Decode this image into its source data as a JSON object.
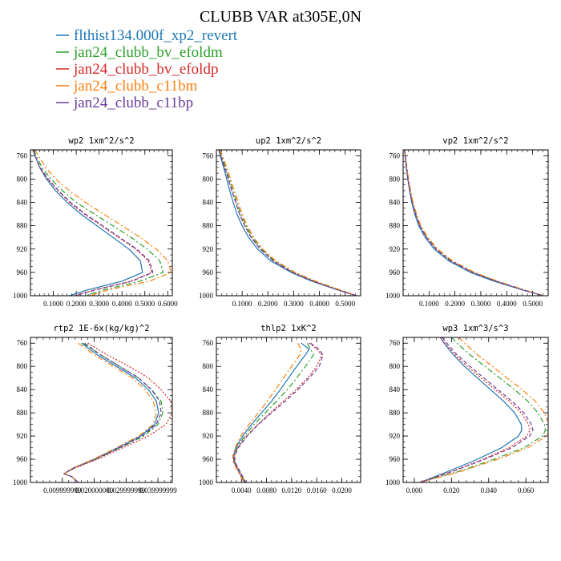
{
  "figure": {
    "title": "CLUBB VAR at305E,0N"
  },
  "legend": [
    {
      "label": "flthist134.000f_xp2_revert",
      "color": "#1f77b4",
      "dash": "solid"
    },
    {
      "label": "jan24_clubb_bv_efoldm",
      "color": "#2ca02c",
      "dash": "dashdot"
    },
    {
      "label": "jan24_clubb_bv_efoldp",
      "color": "#d62728",
      "dash": "dotted"
    },
    {
      "label": "jan24_clubb_c11bm",
      "color": "#ff7f0e",
      "dash": "dashdot"
    },
    {
      "label": "jan24_clubb_c11bp",
      "color": "#6a3d9a",
      "dash": "dashed"
    }
  ],
  "chart_data": [
    {
      "type": "line",
      "title": "wp2   1xm^2/s^2",
      "xlim": [
        0.0,
        0.62
      ],
      "ylim": [
        1000,
        750
      ],
      "xticks": [
        0.1,
        0.2,
        0.3,
        0.4,
        0.5,
        0.6
      ],
      "xtick_labels": [
        "0.1000",
        "0.2000",
        "0.3000",
        "0.4000",
        "0.5000",
        "0.6000"
      ],
      "yticks": [
        760,
        800,
        840,
        880,
        920,
        960,
        1000
      ],
      "ytick_labels": [
        "760",
        "800",
        "840",
        "880",
        "920",
        "960",
        "1000"
      ],
      "y": [
        750,
        760,
        780,
        800,
        820,
        840,
        860,
        880,
        900,
        920,
        940,
        960,
        975,
        990,
        1000
      ],
      "series": [
        {
          "name": "flthist134.000f_xp2_revert",
          "values": [
            0.01,
            0.02,
            0.04,
            0.07,
            0.11,
            0.16,
            0.22,
            0.29,
            0.36,
            0.43,
            0.48,
            0.49,
            0.4,
            0.25,
            0.17
          ]
        },
        {
          "name": "jan24_clubb_bv_efoldm",
          "values": [
            0.015,
            0.025,
            0.05,
            0.09,
            0.14,
            0.2,
            0.28,
            0.36,
            0.44,
            0.51,
            0.565,
            0.58,
            0.48,
            0.32,
            0.24
          ]
        },
        {
          "name": "jan24_clubb_bv_efoldp",
          "values": [
            0.01,
            0.02,
            0.04,
            0.075,
            0.12,
            0.17,
            0.235,
            0.31,
            0.385,
            0.46,
            0.515,
            0.53,
            0.44,
            0.28,
            0.19
          ]
        },
        {
          "name": "jan24_clubb_c11bm",
          "values": [
            0.02,
            0.035,
            0.065,
            0.11,
            0.17,
            0.24,
            0.32,
            0.4,
            0.48,
            0.55,
            0.6,
            0.615,
            0.52,
            0.34,
            0.26
          ]
        },
        {
          "name": "jan24_clubb_c11bp",
          "values": [
            0.01,
            0.02,
            0.042,
            0.078,
            0.123,
            0.175,
            0.24,
            0.315,
            0.39,
            0.465,
            0.52,
            0.535,
            0.445,
            0.285,
            0.195
          ]
        }
      ]
    },
    {
      "type": "line",
      "title": "up2   1xm^2/s^2",
      "xlim": [
        0.0,
        0.56
      ],
      "ylim": [
        1000,
        750
      ],
      "xticks": [
        0.1,
        0.2,
        0.3,
        0.4,
        0.5
      ],
      "xtick_labels": [
        "0.1000",
        "0.2000",
        "0.3000",
        "0.4000",
        "0.5000"
      ],
      "yticks": [
        760,
        800,
        840,
        880,
        920,
        960,
        1000
      ],
      "ytick_labels": [
        "760",
        "800",
        "840",
        "880",
        "920",
        "960",
        "1000"
      ],
      "y": [
        750,
        760,
        780,
        800,
        820,
        840,
        860,
        880,
        900,
        920,
        940,
        960,
        975,
        990,
        1000
      ],
      "series": [
        {
          "name": "flthist134.000f_xp2_revert",
          "values": [
            0.01,
            0.015,
            0.028,
            0.04,
            0.052,
            0.065,
            0.08,
            0.1,
            0.125,
            0.16,
            0.21,
            0.29,
            0.37,
            0.47,
            0.545
          ]
        },
        {
          "name": "jan24_clubb_bv_efoldm",
          "values": [
            0.012,
            0.02,
            0.035,
            0.05,
            0.065,
            0.08,
            0.095,
            0.115,
            0.14,
            0.175,
            0.225,
            0.3,
            0.38,
            0.475,
            0.545
          ]
        },
        {
          "name": "jan24_clubb_bv_efoldp",
          "values": [
            0.01,
            0.017,
            0.032,
            0.046,
            0.06,
            0.075,
            0.09,
            0.11,
            0.135,
            0.17,
            0.22,
            0.295,
            0.375,
            0.47,
            0.545
          ]
        },
        {
          "name": "jan24_clubb_c11bm",
          "values": [
            0.015,
            0.023,
            0.04,
            0.055,
            0.07,
            0.085,
            0.1,
            0.12,
            0.145,
            0.18,
            0.23,
            0.305,
            0.385,
            0.48,
            0.545
          ]
        },
        {
          "name": "jan24_clubb_c11bp",
          "values": [
            0.01,
            0.017,
            0.032,
            0.046,
            0.06,
            0.075,
            0.09,
            0.11,
            0.135,
            0.17,
            0.22,
            0.295,
            0.375,
            0.47,
            0.545
          ]
        }
      ]
    },
    {
      "type": "line",
      "title": "vp2   1xm^2/s^2",
      "xlim": [
        0.0,
        0.56
      ],
      "ylim": [
        1000,
        750
      ],
      "xticks": [
        0.1,
        0.2,
        0.3,
        0.4,
        0.5
      ],
      "xtick_labels": [
        "0.1000",
        "0.2000",
        "0.3000",
        "0.4000",
        "0.5000"
      ],
      "yticks": [
        760,
        800,
        840,
        880,
        920,
        960,
        1000
      ],
      "ytick_labels": [
        "760",
        "800",
        "840",
        "880",
        "920",
        "960",
        "1000"
      ],
      "y": [
        750,
        760,
        780,
        800,
        820,
        840,
        860,
        880,
        900,
        920,
        940,
        960,
        975,
        990,
        1000
      ],
      "series": [
        {
          "name": "flthist134.000f_xp2_revert",
          "values": [
            0.005,
            0.008,
            0.012,
            0.018,
            0.025,
            0.033,
            0.045,
            0.06,
            0.085,
            0.12,
            0.175,
            0.26,
            0.35,
            0.46,
            0.54
          ]
        },
        {
          "name": "jan24_clubb_bv_efoldm",
          "values": [
            0.006,
            0.009,
            0.014,
            0.02,
            0.028,
            0.037,
            0.05,
            0.066,
            0.092,
            0.13,
            0.185,
            0.27,
            0.36,
            0.465,
            0.54
          ]
        },
        {
          "name": "jan24_clubb_bv_efoldp",
          "values": [
            0.005,
            0.008,
            0.013,
            0.019,
            0.026,
            0.035,
            0.048,
            0.064,
            0.09,
            0.127,
            0.182,
            0.268,
            0.358,
            0.463,
            0.54
          ]
        },
        {
          "name": "jan24_clubb_c11bm",
          "values": [
            0.006,
            0.009,
            0.015,
            0.021,
            0.029,
            0.038,
            0.052,
            0.068,
            0.095,
            0.133,
            0.19,
            0.275,
            0.365,
            0.468,
            0.54
          ]
        },
        {
          "name": "jan24_clubb_c11bp",
          "values": [
            0.005,
            0.008,
            0.013,
            0.019,
            0.026,
            0.035,
            0.048,
            0.064,
            0.09,
            0.127,
            0.182,
            0.268,
            0.358,
            0.463,
            0.54
          ]
        }
      ]
    },
    {
      "type": "line",
      "title": "rtp2   1E-6x(kg/kg)^2",
      "xlim": [
        0.0,
        0.0445
      ],
      "ylim": [
        1000,
        750
      ],
      "xticks": [
        0.01,
        0.02,
        0.03,
        0.04
      ],
      "xtick_labels": [
        "0.009999999",
        "0.020000000",
        "0.029999999",
        "0.039999999"
      ],
      "yticks": [
        760,
        800,
        840,
        880,
        920,
        960,
        1000
      ],
      "ytick_labels": [
        "760",
        "800",
        "840",
        "880",
        "920",
        "960",
        "1000"
      ],
      "y": [
        760,
        780,
        800,
        820,
        840,
        860,
        880,
        900,
        920,
        940,
        960,
        975,
        985,
        990,
        1000
      ],
      "series": [
        {
          "name": "flthist134.000f_xp2_revert",
          "values": [
            0.016,
            0.021,
            0.027,
            0.033,
            0.037,
            0.0395,
            0.0402,
            0.039,
            0.0345,
            0.0275,
            0.02,
            0.0135,
            0.0105,
            0.013,
            0.015
          ]
        },
        {
          "name": "jan24_clubb_bv_efoldm",
          "values": [
            0.0165,
            0.022,
            0.028,
            0.034,
            0.038,
            0.041,
            0.0415,
            0.04,
            0.0355,
            0.0282,
            0.0205,
            0.0138,
            0.0105,
            0.013,
            0.015
          ]
        },
        {
          "name": "jan24_clubb_bv_efoldp",
          "values": [
            0.018,
            0.024,
            0.031,
            0.037,
            0.041,
            0.044,
            0.0445,
            0.0425,
            0.037,
            0.029,
            0.021,
            0.014,
            0.0105,
            0.013,
            0.015
          ]
        },
        {
          "name": "jan24_clubb_c11bm",
          "values": [
            0.015,
            0.02,
            0.026,
            0.032,
            0.036,
            0.0385,
            0.0395,
            0.0385,
            0.034,
            0.027,
            0.0198,
            0.0133,
            0.0105,
            0.013,
            0.015
          ]
        },
        {
          "name": "jan24_clubb_c11bp",
          "values": [
            0.017,
            0.022,
            0.028,
            0.034,
            0.038,
            0.0405,
            0.041,
            0.0395,
            0.035,
            0.028,
            0.0203,
            0.0136,
            0.0105,
            0.013,
            0.015
          ]
        }
      ]
    },
    {
      "type": "line",
      "title": "thlp2   1xK^2",
      "xlim": [
        0.0,
        0.023
      ],
      "ylim": [
        1000,
        750
      ],
      "xticks": [
        0.004,
        0.008,
        0.012,
        0.016,
        0.02
      ],
      "xtick_labels": [
        "0.0040",
        "0.0080",
        "0.0120",
        "0.0160",
        "0.0200"
      ],
      "yticks": [
        760,
        800,
        840,
        880,
        920,
        960,
        1000
      ],
      "ytick_labels": [
        "760",
        "800",
        "840",
        "880",
        "920",
        "960",
        "1000"
      ],
      "y": [
        760,
        770,
        780,
        800,
        820,
        840,
        860,
        880,
        900,
        920,
        940,
        955,
        965,
        980,
        1000
      ],
      "series": [
        {
          "name": "flthist134.000f_xp2_revert",
          "values": [
            0.0135,
            0.0148,
            0.0142,
            0.0128,
            0.0115,
            0.0102,
            0.0088,
            0.0072,
            0.0056,
            0.0042,
            0.0031,
            0.0027,
            0.0028,
            0.0035,
            0.0045
          ]
        },
        {
          "name": "jan24_clubb_bv_efoldm",
          "values": [
            0.0145,
            0.015,
            0.0155,
            0.0142,
            0.0128,
            0.0113,
            0.0096,
            0.0078,
            0.006,
            0.0045,
            0.0033,
            0.0028,
            0.0029,
            0.0036,
            0.0046
          ]
        },
        {
          "name": "jan24_clubb_bv_efoldp",
          "values": [
            0.0148,
            0.016,
            0.0168,
            0.016,
            0.0145,
            0.0127,
            0.0107,
            0.0086,
            0.0066,
            0.0048,
            0.0034,
            0.0028,
            0.0029,
            0.0036,
            0.0046
          ]
        },
        {
          "name": "jan24_clubb_c11bm",
          "values": [
            0.013,
            0.0135,
            0.0133,
            0.012,
            0.0107,
            0.0094,
            0.0081,
            0.0067,
            0.0052,
            0.0039,
            0.003,
            0.0026,
            0.0027,
            0.0034,
            0.0044
          ]
        },
        {
          "name": "jan24_clubb_c11bp",
          "values": [
            0.015,
            0.0163,
            0.017,
            0.0164,
            0.0148,
            0.013,
            0.011,
            0.0088,
            0.0067,
            0.0049,
            0.0035,
            0.0029,
            0.003,
            0.0037,
            0.0047
          ]
        }
      ]
    },
    {
      "type": "line",
      "title": "wp3   1xm^3/s^3",
      "xlim": [
        -0.006,
        0.072
      ],
      "ylim": [
        1000,
        750
      ],
      "xticks": [
        0.0,
        0.02,
        0.04,
        0.06
      ],
      "xtick_labels": [
        "0.000",
        "0.020",
        "0.040",
        "0.060"
      ],
      "yticks": [
        760,
        800,
        840,
        880,
        920,
        960,
        1000
      ],
      "ytick_labels": [
        "760",
        "800",
        "840",
        "880",
        "920",
        "960",
        "1000"
      ],
      "y": [
        750,
        760,
        780,
        800,
        820,
        840,
        860,
        880,
        900,
        910,
        920,
        940,
        960,
        980,
        1000
      ],
      "series": [
        {
          "name": "flthist134.000f_xp2_revert",
          "values": [
            0.014,
            0.016,
            0.021,
            0.027,
            0.034,
            0.041,
            0.048,
            0.054,
            0.0575,
            0.0578,
            0.056,
            0.047,
            0.034,
            0.019,
            0.003
          ]
        },
        {
          "name": "jan24_clubb_bv_efoldm",
          "values": [
            0.02,
            0.023,
            0.03,
            0.038,
            0.046,
            0.054,
            0.061,
            0.0665,
            0.07,
            0.0705,
            0.069,
            0.059,
            0.043,
            0.025,
            0.003
          ]
        },
        {
          "name": "jan24_clubb_bv_efoldp",
          "values": [
            0.014,
            0.0165,
            0.022,
            0.0285,
            0.036,
            0.0435,
            0.051,
            0.0575,
            0.0615,
            0.0622,
            0.0605,
            0.051,
            0.037,
            0.021,
            0.003
          ]
        },
        {
          "name": "jan24_clubb_c11bm",
          "values": [
            0.024,
            0.027,
            0.034,
            0.042,
            0.05,
            0.058,
            0.065,
            0.07,
            0.0725,
            0.0728,
            0.071,
            0.061,
            0.045,
            0.026,
            0.003
          ]
        },
        {
          "name": "jan24_clubb_c11bp",
          "values": [
            0.015,
            0.0175,
            0.023,
            0.03,
            0.0375,
            0.045,
            0.0525,
            0.059,
            0.063,
            0.0638,
            0.062,
            0.0525,
            0.038,
            0.0215,
            0.003
          ]
        }
      ]
    }
  ]
}
